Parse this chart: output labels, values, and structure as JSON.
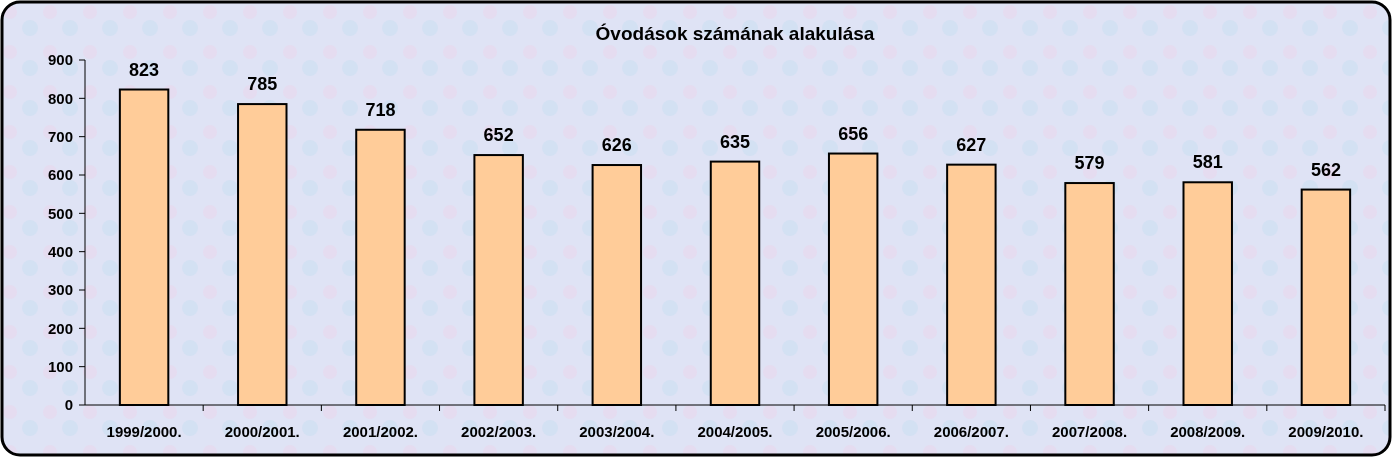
{
  "chart_data": {
    "type": "bar",
    "title": "Óvodások számának alakulása",
    "categories": [
      "1999/2000.",
      "2000/2001.",
      "2001/2002.",
      "2002/2003.",
      "2003/2004.",
      "2004/2005.",
      "2005/2006.",
      "2006/2007.",
      "2007/2008.",
      "2008/2009.",
      "2009/2010."
    ],
    "values": [
      823,
      785,
      718,
      652,
      626,
      635,
      656,
      627,
      579,
      581,
      562
    ],
    "color": "#ffcc99",
    "ylim": [
      0,
      900
    ],
    "yticks": [
      0,
      100,
      200,
      300,
      400,
      500,
      600,
      700,
      800,
      900
    ],
    "grid": false,
    "data_labels": true
  }
}
